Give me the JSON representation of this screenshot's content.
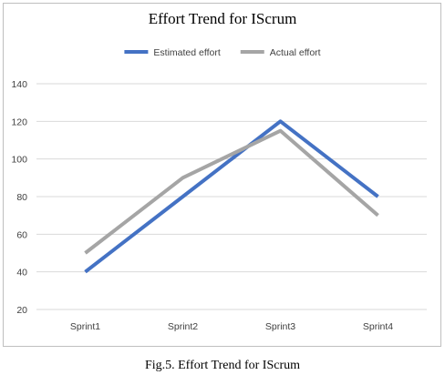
{
  "chart_data": {
    "type": "line",
    "title": "Effort Trend for IScrum",
    "categories": [
      "Sprint1",
      "Sprint2",
      "Sprint3",
      "Sprint4"
    ],
    "series": [
      {
        "name": "Estimated effort",
        "color": "#4472c4",
        "values": [
          40,
          80,
          120,
          80
        ]
      },
      {
        "name": "Actual effort",
        "color": "#a5a5a5",
        "values": [
          50,
          90,
          115,
          70
        ]
      }
    ],
    "xlabel": "",
    "ylabel": "",
    "ylim": [
      20,
      140
    ],
    "yticks": [
      20,
      40,
      60,
      80,
      100,
      120,
      140
    ],
    "grid": true,
    "legend_position": "top"
  },
  "caption": "Fig.5. Effort Trend for IScrum"
}
